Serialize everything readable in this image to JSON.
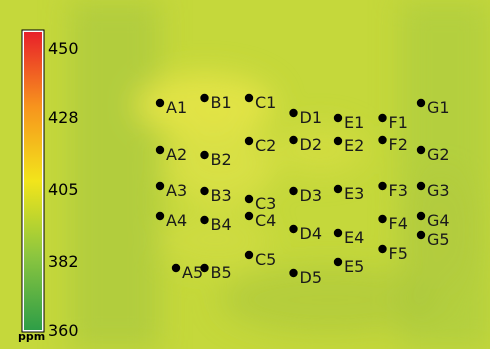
{
  "chart_data": {
    "type": "heatmap",
    "title": "",
    "xlabel": "",
    "ylabel": "",
    "colorbar": {
      "unit": "ppm",
      "range": [
        360,
        450
      ],
      "ticks": [
        360,
        382,
        405,
        428,
        450
      ],
      "colors": [
        "#2e9e47",
        "#8cc63f",
        "#f2e51b",
        "#f7941d",
        "#e8202a"
      ]
    },
    "points": [
      {
        "label": "A1",
        "x": 1,
        "y": 1
      },
      {
        "label": "B1",
        "x": 2,
        "y": 1
      },
      {
        "label": "C1",
        "x": 3,
        "y": 1
      },
      {
        "label": "D1",
        "x": 4,
        "y": 1
      },
      {
        "label": "E1",
        "x": 5,
        "y": 1
      },
      {
        "label": "F1",
        "x": 6,
        "y": 1
      },
      {
        "label": "G1",
        "x": 7,
        "y": 1
      },
      {
        "label": "A2",
        "x": 1,
        "y": 2
      },
      {
        "label": "B2",
        "x": 2,
        "y": 2
      },
      {
        "label": "C2",
        "x": 3,
        "y": 2
      },
      {
        "label": "D2",
        "x": 4,
        "y": 2
      },
      {
        "label": "E2",
        "x": 5,
        "y": 2
      },
      {
        "label": "F2",
        "x": 6,
        "y": 2
      },
      {
        "label": "G2",
        "x": 7,
        "y": 2
      },
      {
        "label": "A3",
        "x": 1,
        "y": 3
      },
      {
        "label": "B3",
        "x": 2,
        "y": 3
      },
      {
        "label": "C3",
        "x": 3,
        "y": 3
      },
      {
        "label": "D3",
        "x": 4,
        "y": 3
      },
      {
        "label": "E3",
        "x": 5,
        "y": 3
      },
      {
        "label": "F3",
        "x": 6,
        "y": 3
      },
      {
        "label": "G3",
        "x": 7,
        "y": 3
      },
      {
        "label": "A4",
        "x": 1,
        "y": 4
      },
      {
        "label": "B4",
        "x": 2,
        "y": 4
      },
      {
        "label": "C4",
        "x": 3,
        "y": 4
      },
      {
        "label": "D4",
        "x": 4,
        "y": 4
      },
      {
        "label": "E4",
        "x": 5,
        "y": 4
      },
      {
        "label": "F4",
        "x": 6,
        "y": 4
      },
      {
        "label": "G4",
        "x": 7,
        "y": 4
      },
      {
        "label": "G5",
        "x": 7,
        "y": 5
      },
      {
        "label": "A5",
        "x": 1,
        "y": 5
      },
      {
        "label": "B5",
        "x": 2,
        "y": 5
      },
      {
        "label": "C5",
        "x": 3,
        "y": 5
      },
      {
        "label": "D5",
        "x": 4,
        "y": 5
      },
      {
        "label": "E5",
        "x": 5,
        "y": 5
      },
      {
        "label": "F5",
        "x": 6,
        "y": 5
      }
    ]
  }
}
